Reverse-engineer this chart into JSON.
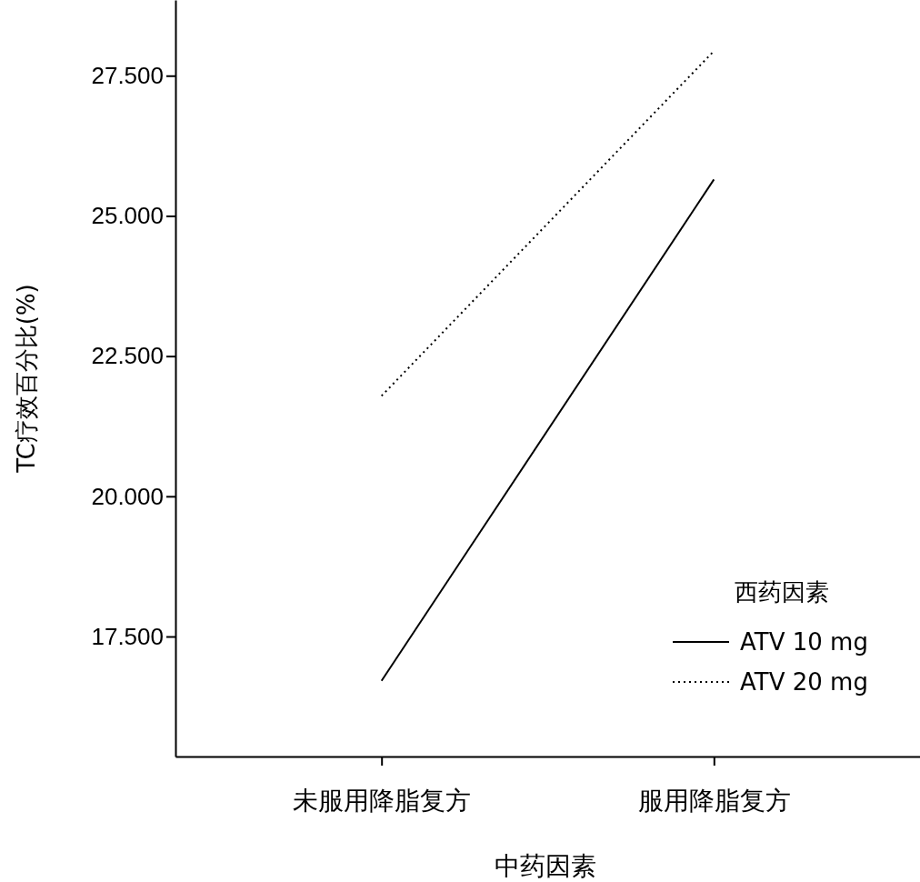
{
  "chart_data": {
    "type": "line",
    "xlabel": "中药因素",
    "ylabel": "TC疗效百分比(%)",
    "legend_title": "西药因素",
    "categories": [
      "未服用降脂复方",
      "服用降脂复方"
    ],
    "series": [
      {
        "name": "ATV 10 mg",
        "color": "#000000",
        "values": [
          16.71,
          25.65
        ],
        "line_style": "solid"
      },
      {
        "name": "ATV 20 mg",
        "color": "#000000",
        "values": [
          21.79,
          27.94
        ],
        "line_style": "dotted"
      }
    ],
    "ylim": [
      15.36,
      28.85
    ],
    "yticks": [
      {
        "value": 17.5,
        "label": "17.500"
      },
      {
        "value": 20,
        "label": "20.000"
      },
      {
        "value": 22.5,
        "label": "22.500"
      },
      {
        "value": 25,
        "label": "25.000"
      },
      {
        "value": 27.5,
        "label": "27.500"
      }
    ],
    "grid": false,
    "legend": "bottom right",
    "marker": "none"
  }
}
